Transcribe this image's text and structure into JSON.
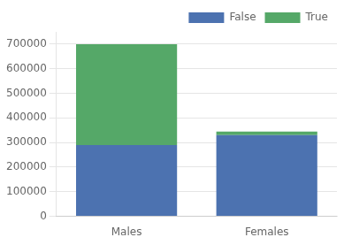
{
  "chart_data": {
    "type": "bar",
    "categories": [
      "Males",
      "Females"
    ],
    "series": [
      {
        "name": "False",
        "color": "#4c72b0",
        "values": [
          290000,
          330000
        ]
      },
      {
        "name": "True",
        "color": "#55a868",
        "values": [
          410000,
          15000
        ]
      }
    ],
    "stacked": true,
    "ylim": [
      0,
      750000
    ],
    "yticks": [
      0,
      100000,
      200000,
      300000,
      400000,
      500000,
      600000,
      700000
    ],
    "grid": true,
    "legend": "upper right"
  }
}
